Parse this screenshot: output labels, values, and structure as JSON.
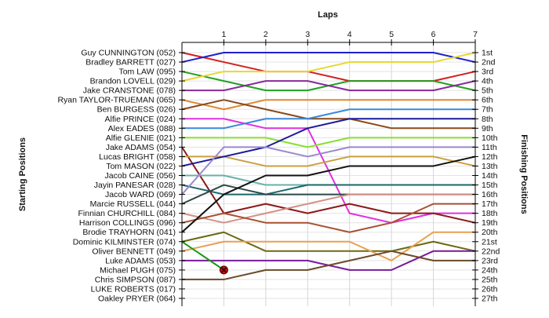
{
  "chart_data": {
    "type": "line",
    "title": "",
    "xlabel": "Laps",
    "ylabel_left": "Starting Positions",
    "ylabel_right": "Finishing Positions",
    "laps": [
      1,
      2,
      3,
      4,
      5,
      6,
      7
    ],
    "start_labels": [
      "Guy CUNNINGTON (052)",
      "Bradley BARRETT (027)",
      "Tom LAW (095)",
      "Brandon LOVELL (029)",
      "Jake CRANSTONE (078)",
      "Ryan TAYLOR-TRUEMAN (065)",
      "Ben BURGESS (026)",
      "Alfie PRINCE (024)",
      "Alex EADES (088)",
      "Alfie GLENIE (021)",
      "Jake ADAMS (054)",
      "Lucas BRIGHT (058)",
      "Tom MASON (022)",
      "Jacob CAINE (056)",
      "Jayin PANESAR (028)",
      "Jacob WARD (069)",
      "Marcie RUSSELL (044)",
      "Finnian CHURCHILL (084)",
      "Harrison COLLINGS (096)",
      "Brodie TRAYHORN (041)",
      "Dominic KILMINSTER (074)",
      "Oliver BENNETT (049)",
      "Luke ADAMS (053)",
      "Michael PUGH (075)",
      "Chris SIMPSON (087)",
      "LUKE ROBERTS (017)",
      "Oakley PRYER (064)"
    ],
    "finish_labels": [
      "1st",
      "2nd",
      "3rd",
      "4th",
      "5th",
      "6th",
      "7th",
      "8th",
      "9th",
      "10th",
      "11th",
      "12th",
      "13th",
      "14th",
      "15th",
      "16th",
      "17th",
      "18th",
      "19th",
      "20th",
      "21st",
      "22nd",
      "23rd",
      "24th",
      "25th",
      "26th",
      "27th"
    ],
    "series": [
      {
        "color": "#d42020",
        "positions": [
          1,
          2,
          3,
          3,
          4,
          4,
          4,
          3
        ]
      },
      {
        "color": "#2020cc",
        "positions": [
          2,
          1,
          1,
          1,
          1,
          1,
          1,
          2
        ]
      },
      {
        "color": "#22a022",
        "positions": [
          3,
          4,
          5,
          5,
          4,
          4,
          4,
          5
        ]
      },
      {
        "color": "#e8d830",
        "positions": [
          4,
          3,
          3,
          3,
          2,
          2,
          2,
          1
        ]
      },
      {
        "color": "#8a2a9a",
        "positions": [
          5,
          5,
          4,
          4,
          5,
          5,
          5,
          4
        ]
      },
      {
        "color": "#e08830",
        "positions": [
          6,
          7,
          6,
          6,
          6,
          6,
          6,
          6
        ]
      },
      {
        "color": "#8a4a1a",
        "positions": [
          7,
          6,
          7,
          8,
          8,
          9,
          9,
          9
        ]
      },
      {
        "color": "#e030e0",
        "positions": [
          8,
          8,
          9,
          9,
          18,
          19,
          18,
          18
        ]
      },
      {
        "color": "#3a8ad8",
        "positions": [
          9,
          9,
          8,
          8,
          7,
          7,
          7,
          7
        ]
      },
      {
        "color": "#88e030",
        "positions": [
          10,
          10,
          10,
          11,
          10,
          10,
          10,
          10
        ]
      },
      {
        "color": "#8a1a1a",
        "positions": [
          11,
          18,
          17,
          18,
          17,
          18,
          18,
          19
        ]
      },
      {
        "color": "#c8a040",
        "positions": [
          12,
          12,
          13,
          13,
          12,
          12,
          12,
          13
        ]
      },
      {
        "color": "#1a1a9a",
        "positions": [
          13,
          12,
          11,
          9,
          8,
          8,
          8,
          8
        ]
      },
      {
        "color": "#68b0a8",
        "positions": [
          14,
          14,
          15,
          15,
          15,
          15,
          15,
          15
        ]
      },
      {
        "color": "#1a6868",
        "positions": [
          15,
          16,
          16,
          15,
          15,
          15,
          15,
          15
        ]
      },
      {
        "color": "#9a88d0",
        "positions": [
          16,
          11,
          11,
          12,
          11,
          11,
          11,
          11
        ]
      },
      {
        "color": "#2a4848",
        "positions": [
          17,
          15,
          16,
          16,
          16,
          16,
          16,
          16
        ]
      },
      {
        "color": "#d49088",
        "positions": [
          18,
          19,
          18,
          17,
          16,
          16,
          16,
          16
        ]
      },
      {
        "color": "#a85030",
        "positions": [
          19,
          18,
          19,
          19,
          20,
          19,
          17,
          17
        ]
      },
      {
        "color": "#111111",
        "positions": [
          20,
          16,
          14,
          14,
          13,
          13,
          13,
          12
        ]
      },
      {
        "color": "#6a6a10",
        "positions": [
          21,
          20,
          22,
          22,
          22,
          22,
          21,
          22
        ]
      },
      {
        "color": "#e8a050",
        "positions": [
          22,
          21,
          21,
          21,
          21,
          23,
          20,
          20
        ]
      },
      {
        "color": "#7a1a9a",
        "positions": [
          23,
          23,
          23,
          23,
          24,
          24,
          22,
          22
        ]
      },
      {
        "color": "#1a9a1a",
        "positions": [
          21,
          24
        ]
      },
      {
        "color": "#6a4a2a",
        "positions": [
          25,
          25,
          24,
          24,
          23,
          22,
          23,
          23
        ]
      }
    ],
    "retired_marker": {
      "lap": 1,
      "position": 24,
      "color": "#cc1010"
    }
  }
}
